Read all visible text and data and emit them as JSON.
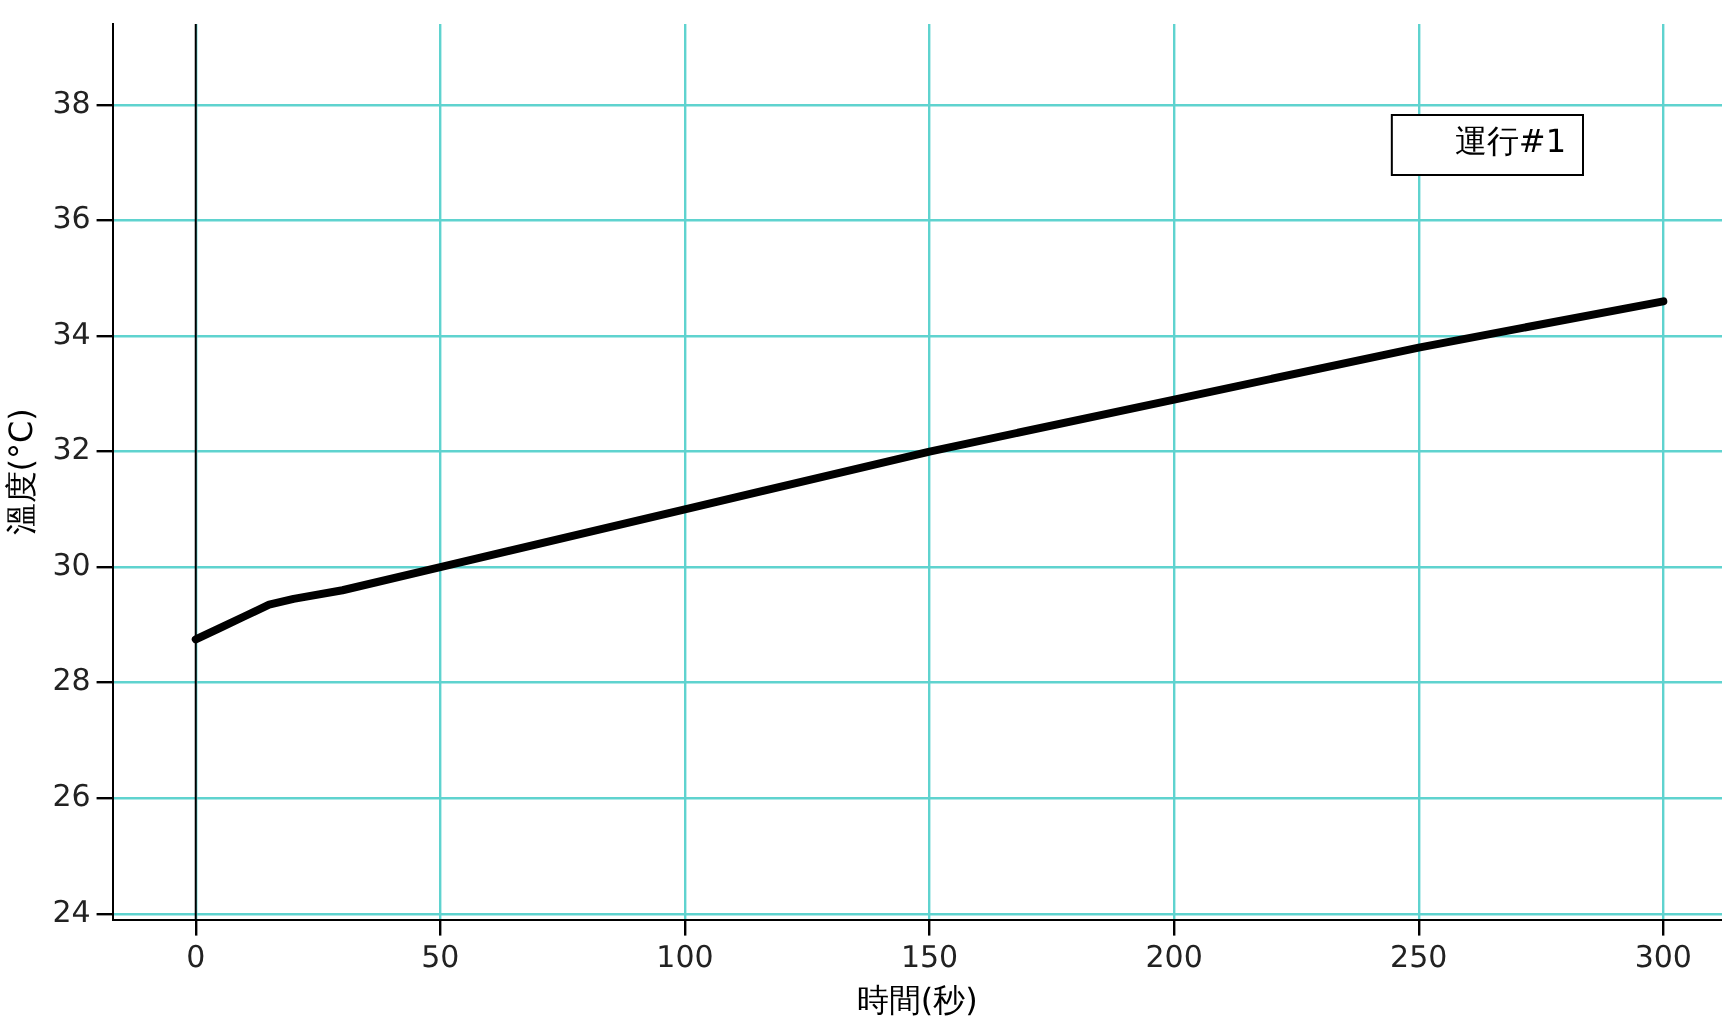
{
  "chart_data": {
    "type": "line",
    "xlabel": "時間(秒)",
    "ylabel": "溫度(°C)",
    "x": [
      0,
      5,
      10,
      15,
      20,
      30,
      50,
      100,
      150,
      200,
      250,
      300
    ],
    "series": [
      {
        "name": "運行#1",
        "color": "#000000",
        "values": [
          28.75,
          28.95,
          29.15,
          29.35,
          29.45,
          29.6,
          30.0,
          31.0,
          32.0,
          32.9,
          33.8,
          34.6
        ]
      }
    ],
    "xlim": [
      -17,
      312
    ],
    "xticks": [
      0,
      50,
      100,
      150,
      200,
      250,
      300
    ],
    "ylim": [
      23.9,
      39.4
    ],
    "yticks": [
      24,
      26,
      28,
      30,
      32,
      34,
      36,
      38
    ],
    "grid": true,
    "legend": "top right",
    "marker": "none",
    "line_style": "solid"
  }
}
